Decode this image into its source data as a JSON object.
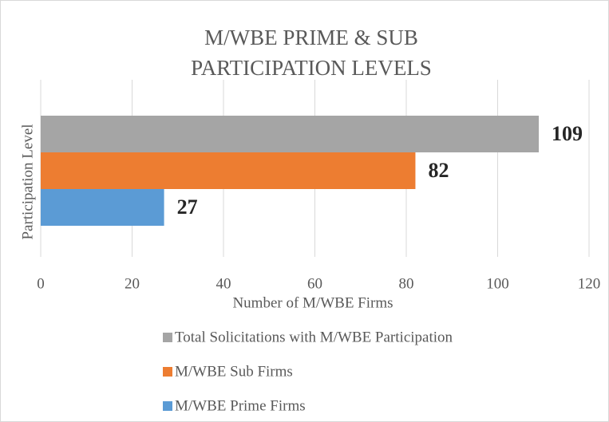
{
  "chart_data": {
    "type": "bar",
    "orientation": "horizontal",
    "title": "M/WBE PRIME & SUB PARTICIPATION LEVELS",
    "x_label": "Number of M/WBE Firms",
    "y_label": "Participation Level",
    "categories": [
      null
    ],
    "series": [
      {
        "name": "Total Solicitations with M/WBE Participation",
        "color": "#a5a5a5",
        "values": [
          109
        ]
      },
      {
        "name": "M/WBE Sub Firms",
        "color": "#ed7d31",
        "values": [
          82
        ]
      },
      {
        "name": "M/WBE Prime Firms",
        "color": "#5b9bd5",
        "values": [
          27
        ]
      }
    ],
    "xlim": [
      0,
      120
    ],
    "xticks": [
      0,
      20,
      40,
      60,
      80,
      100,
      120
    ],
    "grid": true,
    "legend": "bottom"
  }
}
